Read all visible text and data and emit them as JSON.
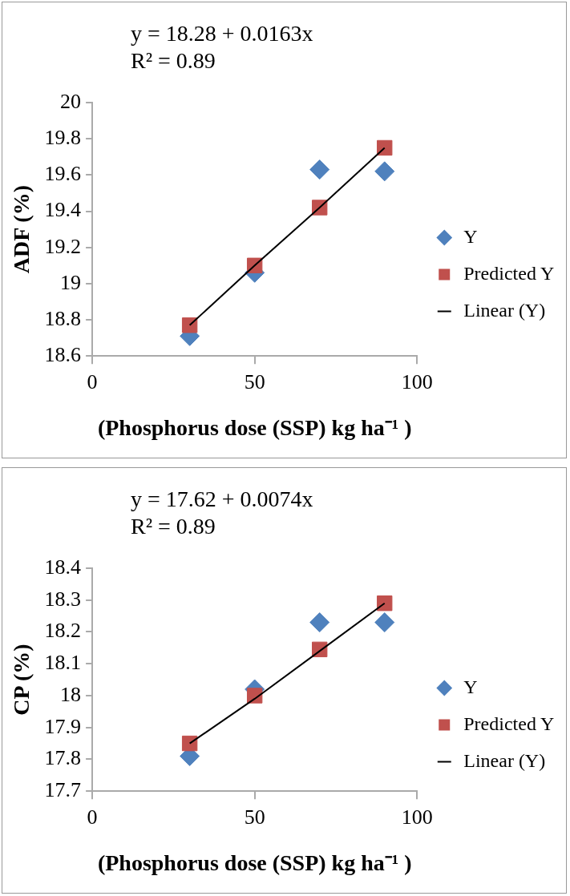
{
  "chart_data": [
    {
      "type": "scatter",
      "x": [
        30,
        50,
        70,
        90
      ],
      "xlabel": "(Phosphorus dose (SSP) kg ha⁻¹ )",
      "ylabel": "ADF (%)",
      "xlim": [
        0,
        100
      ],
      "xticks": [
        0,
        50,
        100
      ],
      "ylim": [
        18.6,
        20
      ],
      "yticks": [
        {
          "value": 18.6,
          "label": "18.6"
        },
        {
          "value": 18.8,
          "label": "18.8"
        },
        19,
        {
          "value": 19.2,
          "label": "19.2"
        },
        {
          "value": 19.4,
          "label": "19.4"
        },
        {
          "value": 19.6,
          "label": "19.6"
        },
        {
          "value": 19.8,
          "label": "19.8"
        },
        20
      ],
      "grid": false,
      "legend": "right",
      "annotations": [
        "y = 18.28 + 0.0163x",
        "R² = 0.89"
      ],
      "series": [
        {
          "name": "Y",
          "color": "#4f81bd",
          "marker": "diamond",
          "values": [
            18.71,
            19.06,
            19.63,
            19.62
          ]
        },
        {
          "name": "Predicted Y",
          "color": "#c0504d",
          "marker": "square",
          "values": [
            18.77,
            19.1,
            19.42,
            19.75
          ]
        },
        {
          "name": "Linear (Y)",
          "type": "line",
          "color": "#000000",
          "marker": "none",
          "values": [
            18.77,
            19.1,
            19.42,
            19.75
          ]
        }
      ]
    },
    {
      "type": "scatter",
      "x": [
        30,
        50,
        70,
        90
      ],
      "xlabel": "(Phosphorus dose (SSP) kg ha⁻¹ )",
      "ylabel": "CP (%)",
      "xlim": [
        0,
        100
      ],
      "xticks": [
        0,
        50,
        100
      ],
      "ylim": [
        17.7,
        18.4
      ],
      "yticks": [
        {
          "value": 17.7,
          "label": "17.7"
        },
        {
          "value": 17.8,
          "label": "17.8"
        },
        {
          "value": 17.9,
          "label": "17.9"
        },
        18,
        {
          "value": 18.1,
          "label": "18.1"
        },
        {
          "value": 18.2,
          "label": "18.2"
        },
        {
          "value": 18.3,
          "label": "18.3"
        },
        {
          "value": 18.4,
          "label": "18.4"
        }
      ],
      "grid": false,
      "legend": "right",
      "annotations": [
        "y = 17.62 + 0.0074x",
        "R² = 0.89"
      ],
      "series": [
        {
          "name": "Y",
          "color": "#4f81bd",
          "marker": "diamond",
          "values": [
            17.81,
            18.02,
            18.23,
            18.23
          ]
        },
        {
          "name": "Predicted Y",
          "color": "#c0504d",
          "marker": "square",
          "values": [
            17.85,
            18.0,
            18.145,
            18.29
          ]
        },
        {
          "name": "Linear (Y)",
          "type": "line",
          "color": "#000000",
          "marker": "none",
          "values": [
            17.85,
            17.99,
            18.14,
            18.29
          ]
        }
      ]
    }
  ]
}
